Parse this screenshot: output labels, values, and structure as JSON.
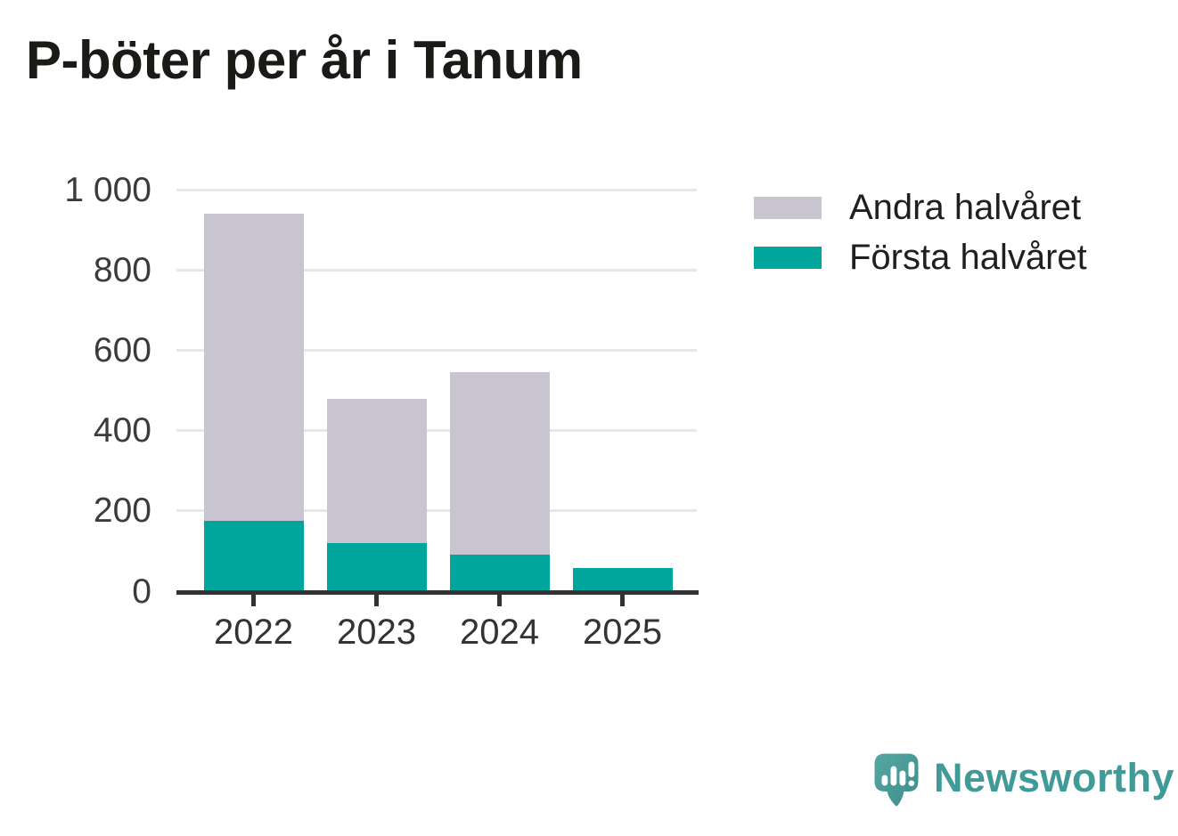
{
  "title": "P-böter per år i Tanum",
  "legend": {
    "items": [
      {
        "label": "Andra halvåret",
        "color": "#c8c5d0"
      },
      {
        "label": "Första halvåret",
        "color": "#00a69b"
      }
    ]
  },
  "chart_data": {
    "type": "bar",
    "stacked": true,
    "title": "P-böter per år i Tanum",
    "categories": [
      "2022",
      "2023",
      "2024",
      "2025"
    ],
    "series": [
      {
        "name": "Första halvåret",
        "color": "#00a69b",
        "values": [
          175,
          120,
          90,
          58
        ]
      },
      {
        "name": "Andra halvåret",
        "color": "#c8c5d0",
        "values": [
          765,
          360,
          455,
          0
        ]
      }
    ],
    "totals": [
      940,
      480,
      545,
      58
    ],
    "xlabel": "",
    "ylabel": "",
    "ylim": [
      0,
      1000
    ],
    "yticks": [
      0,
      200,
      400,
      600,
      800,
      1000
    ],
    "ytick_labels": [
      "0",
      "200",
      "400",
      "600",
      "800",
      "1 000"
    ],
    "grid": true,
    "legend_position": "top-right"
  },
  "branding": {
    "logo_text": "Newsworthy",
    "logo_color": "#3f9a98",
    "logo_icon": "speech-bubble-bar-chart-icon",
    "icon_colors": {
      "top": "#55a7a2",
      "bottom": "#3d8d8b",
      "bars": "#ffffff"
    }
  }
}
